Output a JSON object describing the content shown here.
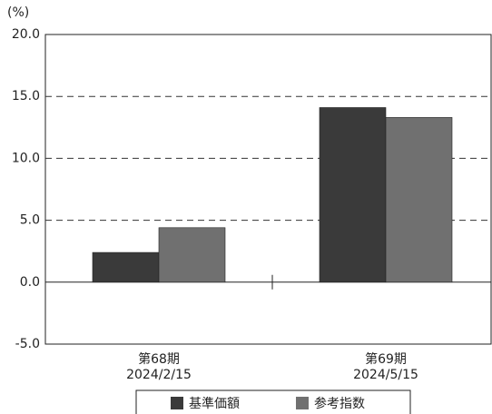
{
  "chart_data": {
    "type": "bar",
    "y_label": "(%)",
    "categories": [
      "第68期\n2024/2/15",
      "第69期\n2024/5/15"
    ],
    "series": [
      {
        "name": "基準価額",
        "color": "#3a3a3a",
        "values": [
          2.4,
          14.1
        ]
      },
      {
        "name": "参考指数",
        "color": "#707070",
        "values": [
          4.4,
          13.3
        ]
      }
    ],
    "ylim": [
      -5,
      20
    ],
    "yticks": [
      {
        "value": -5,
        "label": "-5.0"
      },
      {
        "value": 0,
        "label": "0.0"
      },
      {
        "value": 5,
        "label": "5.0"
      },
      {
        "value": 10,
        "label": "10.0"
      },
      {
        "value": 15,
        "label": "15.0"
      },
      {
        "value": 20,
        "label": "20.0"
      }
    ],
    "grid": true,
    "legend": "bottom"
  }
}
